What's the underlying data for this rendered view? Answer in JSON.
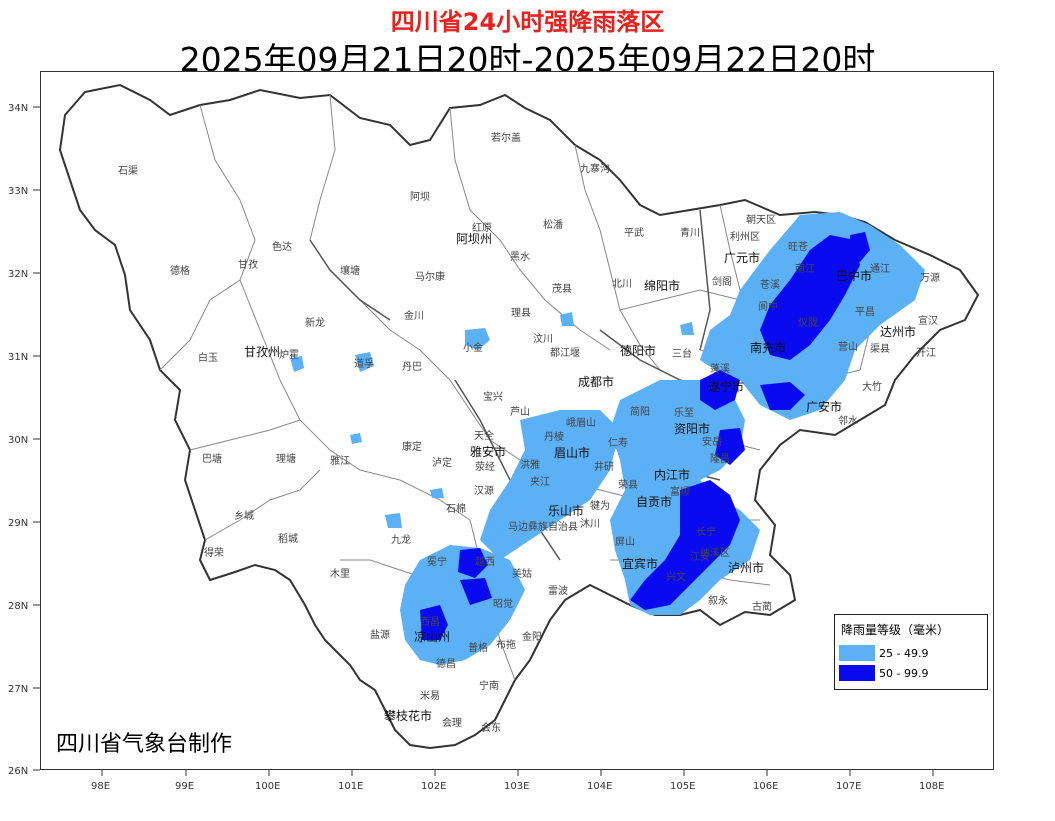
{
  "title": "四川省24小时强降雨落区",
  "subtitle": "2025年09月21日20时-2025年09月22日20时",
  "credit": "四川省气象台制作",
  "axes": {
    "lat_ticks": [
      "34N",
      "33N",
      "32N",
      "31N",
      "30N",
      "29N",
      "28N",
      "27N",
      "26N"
    ],
    "lon_ticks": [
      "98E",
      "99E",
      "100E",
      "101E",
      "102E",
      "103E",
      "104E",
      "105E",
      "106E",
      "107E",
      "108E"
    ]
  },
  "legend": {
    "title": "降雨量等级（毫米）",
    "items": [
      {
        "label": "25 - 49.9",
        "color": "#5cb0f5"
      },
      {
        "label": "50 - 99.9",
        "color": "#0a0af0"
      }
    ]
  },
  "places": [
    "石渠",
    "若尔盖",
    "九寨沟",
    "德格",
    "甘孜",
    "色达",
    "阿坝",
    "红原",
    "松潘",
    "平武",
    "青川",
    "朝天区",
    "利州区",
    "广元市",
    "旺苍",
    "巴中市",
    "通江",
    "万源",
    "阿坝州",
    "黑水",
    "壤塘",
    "马尔康",
    "茂县",
    "北川",
    "绵阳市",
    "剑阁",
    "苍溪",
    "南江",
    "平昌",
    "宣汉",
    "达州市",
    "白玉",
    "甘孜州",
    "炉霍",
    "新龙",
    "道孚",
    "丹巴",
    "金川",
    "小金",
    "理县",
    "汶川",
    "都江堰",
    "德阳市",
    "三台",
    "阆中",
    "南充市",
    "仪陇",
    "营山",
    "渠县",
    "大竹",
    "开江",
    "巴塘",
    "理塘",
    "雅江",
    "康定",
    "泸定",
    "宝兴",
    "芦山",
    "天全",
    "雅安市",
    "荥经",
    "成都市",
    "遂宁市",
    "蓬溪",
    "广安市",
    "邻水",
    "乐至",
    "资阳市",
    "安岳",
    "内江市",
    "自贡市",
    "泸州市",
    "宜宾市",
    "叙永",
    "古蔺",
    "乡城",
    "稻城",
    "九龙",
    "石棉",
    "汉源",
    "乐山市",
    "犍为",
    "沐川",
    "马边彝族自治县",
    "屏山",
    "长宁",
    "兴文",
    "得荣",
    "木里",
    "冕宁",
    "越西",
    "美姑",
    "雷波",
    "盐源",
    "西昌",
    "凉山州",
    "昭觉",
    "金阳",
    "普格",
    "布拖",
    "德昌",
    "宁南",
    "米易",
    "攀枝花市",
    "会理",
    "会东",
    "眉山市",
    "仁寿",
    "简阳",
    "峨眉山",
    "洪雅",
    "丹棱",
    "夹江",
    "井研",
    "荣县",
    "富顺",
    "隆昌",
    "江安",
    "纳溪区"
  ]
}
